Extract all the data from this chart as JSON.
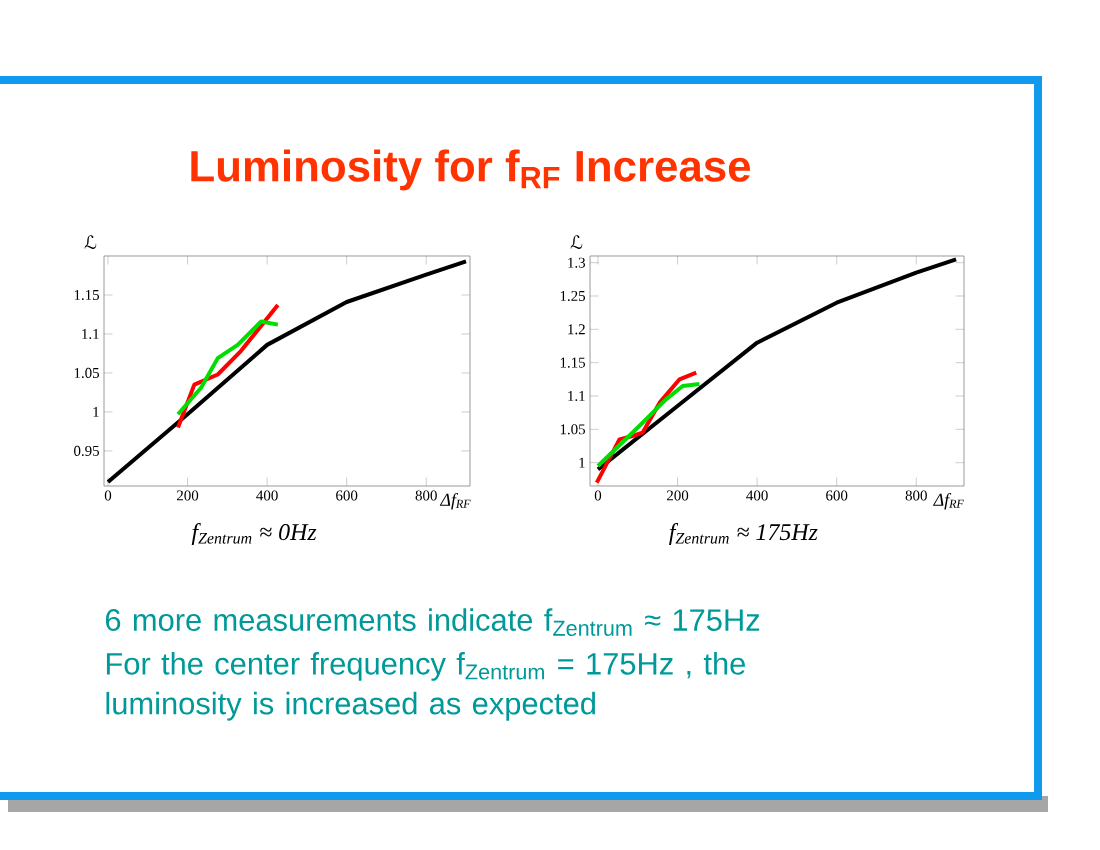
{
  "chart_data": [
    {
      "type": "line",
      "title": "Luminosity for f$_{RF}$ Increase",
      "xlabel": "Δf$_{RF}$",
      "ylabel": "ℒ",
      "annotations": [
        "f$_{Zentrum}$ ≈ 0Hz",
        "6 more measurements indicate f$_{Zentrum}$ ≈ 175Hz",
        "For the center frequency f$_{Zentrum}$ = 175Hz , the luminosity is increased as expected"
      ],
      "xlim": [
        -10,
        910
      ],
      "ylim": [
        0.905,
        1.2
      ],
      "xticks": [
        0,
        200,
        400,
        600,
        800
      ],
      "yticks": [
        0.95,
        1,
        1.05,
        1.1,
        1.15
      ],
      "series": [
        {
          "color": "#000000",
          "x": [
            0,
            200,
            400,
            600,
            800,
            900
          ],
          "values": [
            0.91,
            0.997,
            1.086,
            1.141,
            1.176,
            1.193
          ]
        },
        {
          "color": "#ff0000",
          "x": [
            176,
            217,
            276,
            334,
            427
          ],
          "values": [
            0.98,
            1.035,
            1.048,
            1.078,
            1.137
          ]
        },
        {
          "color": "#00dd00",
          "x": [
            176,
            234,
            276,
            326,
            385,
            427
          ],
          "values": [
            0.997,
            1.031,
            1.069,
            1.086,
            1.116,
            1.112
          ]
        }
      ]
    },
    {
      "type": "line",
      "xlabel": "Δf$_{RF}$",
      "ylabel": "ℒ",
      "annotations": [
        "f$_{Zentrum}$ ≈ 175Hz"
      ],
      "xlim": [
        -20,
        920
      ],
      "ylim": [
        0.965,
        1.31
      ],
      "xticks": [
        0,
        200,
        400,
        600,
        800
      ],
      "yticks": [
        1,
        1.05,
        1.1,
        1.15,
        1.2,
        1.25,
        1.3
      ],
      "series": [
        {
          "color": "#000000",
          "x": [
            0,
            200,
            400,
            600,
            800,
            900
          ],
          "values": [
            0.99,
            1.085,
            1.18,
            1.24,
            1.285,
            1.305
          ]
        },
        {
          "color": "#ff0000",
          "x": [
            -3,
            54,
            87,
            112,
            155,
            205,
            247
          ],
          "values": [
            0.97,
            1.035,
            1.04,
            1.045,
            1.09,
            1.125,
            1.135
          ]
        },
        {
          "color": "#00dd00",
          "x": [
            0,
            104,
            171,
            213,
            255
          ],
          "values": [
            0.995,
            1.055,
            1.095,
            1.115,
            1.118
          ]
        }
      ]
    }
  ]
}
